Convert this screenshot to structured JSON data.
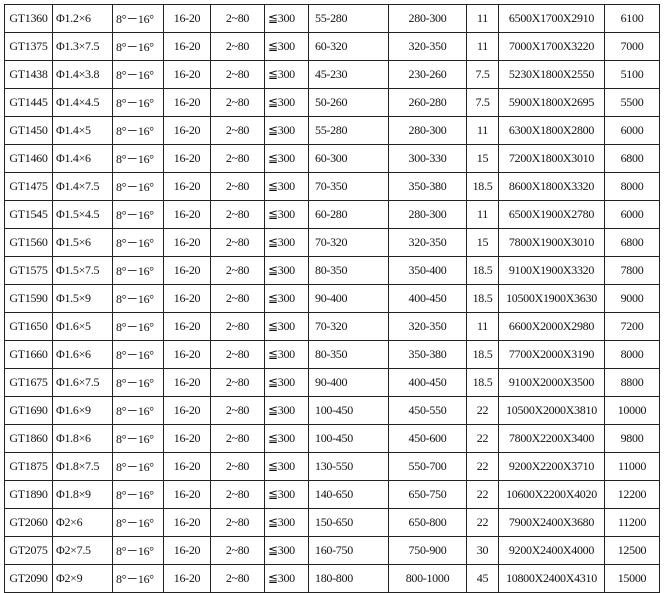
{
  "rows": [
    [
      "GT1360",
      "Φ1.2×6",
      "8°－16°",
      "16-20",
      "2~80",
      "≦300",
      "55-280",
      "280-300",
      "11",
      "6500X1700X2910",
      "6100"
    ],
    [
      "GT1375",
      "Φ1.3×7.5",
      "8°－16°",
      "16-20",
      "2~80",
      "≦300",
      "60-320",
      "320-350",
      "11",
      "7000X1700X3220",
      "7000"
    ],
    [
      "GT1438",
      "Φ1.4×3.8",
      "8°－16°",
      "16-20",
      "2~80",
      "≦300",
      "45-230",
      "230-260",
      "7.5",
      "5230X1800X2550",
      "5100"
    ],
    [
      "GT1445",
      "Φ1.4×4.5",
      "8°－16°",
      "16-20",
      "2~80",
      "≦300",
      "50-260",
      "260-280",
      "7.5",
      "5900X1800X2695",
      "5500"
    ],
    [
      "GT1450",
      "Φ1.4×5",
      "8°－16°",
      "16-20",
      "2~80",
      "≦300",
      "55-280",
      "280-300",
      "11",
      "6300X1800X2800",
      "6000"
    ],
    [
      "GT1460",
      "Φ1.4×6",
      "8°－16°",
      "16-20",
      "2~80",
      "≦300",
      "60-300",
      "300-330",
      "15",
      "7200X1800X3010",
      "6800"
    ],
    [
      "GT1475",
      "Φ1.4×7.5",
      "8°－16°",
      "16-20",
      "2~80",
      "≦300",
      "70-350",
      "350-380",
      "18.5",
      "8600X1800X3320",
      "8000"
    ],
    [
      "GT1545",
      "Φ1.5×4.5",
      "8°－16°",
      "16-20",
      "2~80",
      "≦300",
      "60-280",
      "280-300",
      "11",
      "6500X1900X2780",
      "6000"
    ],
    [
      "GT1560",
      "Φ1.5×6",
      "8°－16°",
      "16-20",
      "2~80",
      "≦300",
      "70-320",
      "320-350",
      "15",
      "7800X1900X3010",
      "6800"
    ],
    [
      "GT1575",
      "Φ1.5×7.5",
      "8°－16°",
      "16-20",
      "2~80",
      "≦300",
      "80-350",
      "350-400",
      "18.5",
      "9100X1900X3320",
      "7800"
    ],
    [
      "GT1590",
      "Φ1.5×9",
      "8°－16°",
      "16-20",
      "2~80",
      "≦300",
      "90-400",
      "400-450",
      "18.5",
      "10500X1900X3630",
      "9000"
    ],
    [
      "GT1650",
      "Φ1.6×5",
      "8°－16°",
      "16-20",
      "2~80",
      "≦300",
      "70-320",
      "320-350",
      "11",
      "6600X2000X2980",
      "7200"
    ],
    [
      "GT1660",
      "Φ1.6×6",
      "8°－16°",
      "16-20",
      "2~80",
      "≦300",
      "80-350",
      "350-380",
      "18.5",
      "7700X2000X3190",
      "8000"
    ],
    [
      "GT1675",
      "Φ1.6×7.5",
      "8°－16°",
      "16-20",
      "2~80",
      "≦300",
      "90-400",
      "400-450",
      "18.5",
      "9100X2000X3500",
      "8800"
    ],
    [
      "GT1690",
      "Φ1.6×9",
      "8°－16°",
      "16-20",
      "2~80",
      "≦300",
      "100-450",
      "450-550",
      "22",
      "10500X2000X3810",
      "10000"
    ],
    [
      "GT1860",
      "Φ1.8×6",
      "8°－16°",
      "16-20",
      "2~80",
      "≦300",
      "100-450",
      "450-600",
      "22",
      "7800X2200X3400",
      "9800"
    ],
    [
      "GT1875",
      "Φ1.8×7.5",
      "8°－16°",
      "16-20",
      "2~80",
      "≦300",
      "130-550",
      "550-700",
      "22",
      "9200X2200X3710",
      "11000"
    ],
    [
      "GT1890",
      "Φ1.8×9",
      "8°－16°",
      "16-20",
      "2~80",
      "≦300",
      "140-650",
      "650-750",
      "22",
      "10600X2200X4020",
      "12200"
    ],
    [
      "GT2060",
      "Φ2×6",
      "8°－16°",
      "16-20",
      "2~80",
      "≦300",
      "150-650",
      "650-800",
      "22",
      "7900X2400X3680",
      "11200"
    ],
    [
      "GT2075",
      "Φ2×7.5",
      "8°－16°",
      "16-20",
      "2~80",
      "≦300",
      "160-750",
      "750-900",
      "30",
      "9200X2400X4000",
      "12500"
    ],
    [
      "GT2090",
      "Φ2×9",
      "8°－16°",
      "16-20",
      "2~80",
      "≦300",
      "180-800",
      "800-1000",
      "45",
      "10800X2400X4310",
      "15000"
    ]
  ]
}
